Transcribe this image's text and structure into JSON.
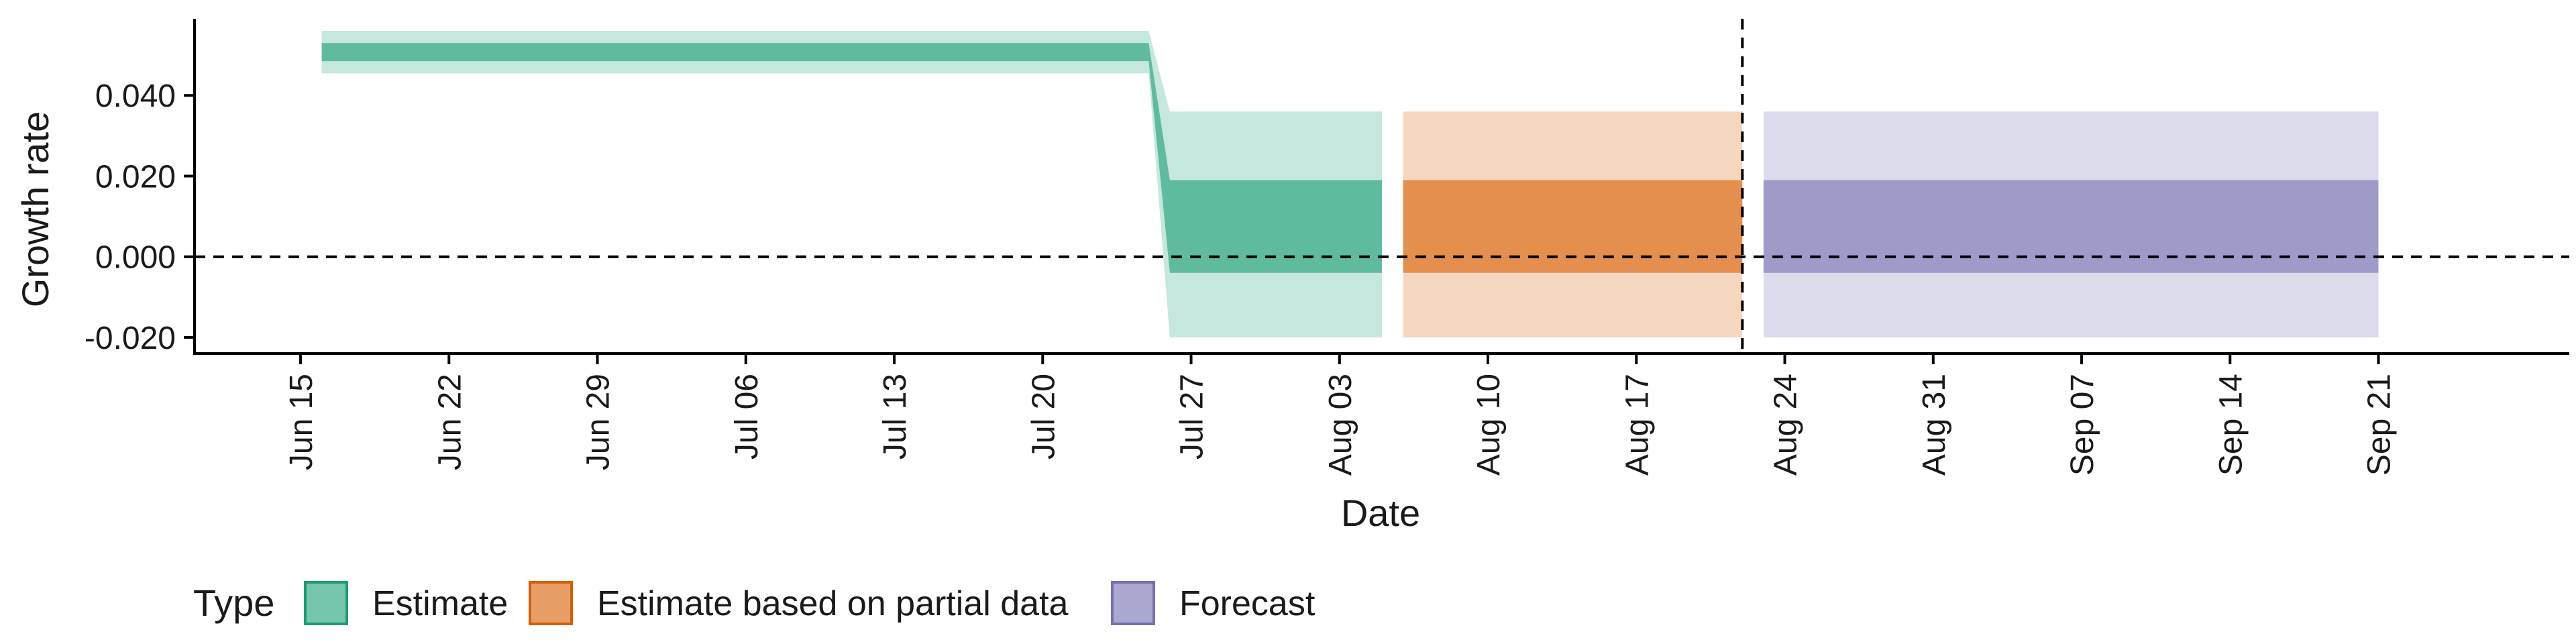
{
  "chart_data": {
    "type": "area",
    "title": "",
    "xlabel": "Date",
    "ylabel": "Growth rate",
    "x_range": [
      "2020-06-10",
      "2020-09-30"
    ],
    "ylim": [
      -0.024,
      0.059
    ],
    "y_ticks": [
      -0.02,
      0.0,
      0.02,
      0.04
    ],
    "y_tick_labels": [
      "-0.020",
      "0.000",
      "0.020",
      "0.040"
    ],
    "x_ticks": [
      "2020-06-15",
      "2020-06-22",
      "2020-06-29",
      "2020-07-06",
      "2020-07-13",
      "2020-07-20",
      "2020-07-27",
      "2020-08-03",
      "2020-08-10",
      "2020-08-17",
      "2020-08-24",
      "2020-08-31",
      "2020-09-07",
      "2020-09-14",
      "2020-09-21"
    ],
    "x_tick_labels": [
      "Jun 15",
      "Jun 22",
      "Jun 29",
      "Jul 06",
      "Jul 13",
      "Jul 20",
      "Jul 27",
      "Aug 03",
      "Aug 10",
      "Aug 17",
      "Aug 24",
      "Aug 31",
      "Sep 07",
      "Sep 14",
      "Sep 21"
    ],
    "reference_lines": {
      "horizontal_y": 0.0,
      "vertical_date": "2020-08-22"
    },
    "grid": false,
    "legend": {
      "title": "Type",
      "position": "bottom-left",
      "entries": [
        {
          "name": "Estimate",
          "color": "#1b9e77"
        },
        {
          "name": "Estimate based on partial data",
          "color": "#d95f02"
        },
        {
          "name": "Forecast",
          "color": "#7570b3"
        }
      ]
    },
    "series": [
      {
        "name": "Estimate",
        "type": "Estimate",
        "color": "#1b9e77",
        "points": [
          {
            "date": "2020-06-16",
            "lower_90": 0.0455,
            "upper_90": 0.056,
            "lower_50": 0.0485,
            "upper_50": 0.053
          },
          {
            "date": "2020-07-25",
            "lower_90": 0.0455,
            "upper_90": 0.056,
            "lower_50": 0.0485,
            "upper_50": 0.053
          },
          {
            "date": "2020-07-26",
            "lower_90": -0.02,
            "upper_90": 0.036,
            "lower_50": -0.004,
            "upper_50": 0.019
          },
          {
            "date": "2020-08-05",
            "lower_90": -0.02,
            "upper_90": 0.036,
            "lower_50": -0.004,
            "upper_50": 0.019
          }
        ]
      },
      {
        "name": "Estimate based on partial data",
        "type": "Estimate based on partial data",
        "color": "#d95f02",
        "points": [
          {
            "date": "2020-08-06",
            "lower_90": -0.02,
            "upper_90": 0.036,
            "lower_50": -0.004,
            "upper_50": 0.019
          },
          {
            "date": "2020-08-22",
            "lower_90": -0.02,
            "upper_90": 0.036,
            "lower_50": -0.004,
            "upper_50": 0.019
          }
        ]
      },
      {
        "name": "Forecast",
        "type": "Forecast",
        "color": "#7570b3",
        "points": [
          {
            "date": "2020-08-23",
            "lower_90": -0.02,
            "upper_90": 0.036,
            "lower_50": -0.004,
            "upper_50": 0.019
          },
          {
            "date": "2020-09-21",
            "lower_90": -0.02,
            "upper_90": 0.036,
            "lower_50": -0.004,
            "upper_50": 0.019
          }
        ]
      }
    ]
  }
}
